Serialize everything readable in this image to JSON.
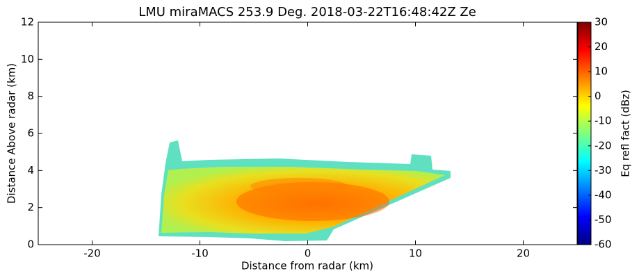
{
  "chart_data": {
    "type": "rhi",
    "title": "LMU miraMACS 253.9 Deg. 2018-03-22T16:48:42Z  Ze",
    "x_label": "Distance from radar (km)",
    "y_label": "Distance Above radar  (km)",
    "colorbar_label": "Eq refl fact (dBz)",
    "xlim": [
      -25,
      25
    ],
    "xticks": [
      -20,
      -10,
      0,
      10,
      20
    ],
    "ylim": [
      0,
      12
    ],
    "yticks": [
      0,
      2,
      4,
      6,
      8,
      10,
      12
    ],
    "clim": [
      -60,
      30
    ],
    "cticks": [
      -60,
      -50,
      -40,
      -30,
      -20,
      -10,
      0,
      10,
      20,
      30
    ],
    "colormap": [
      "#00007f",
      "#0000ff",
      "#007fff",
      "#00ffff",
      "#7fff7f",
      "#ffff00",
      "#ff7f00",
      "#ff0000",
      "#7f0000"
    ]
  }
}
